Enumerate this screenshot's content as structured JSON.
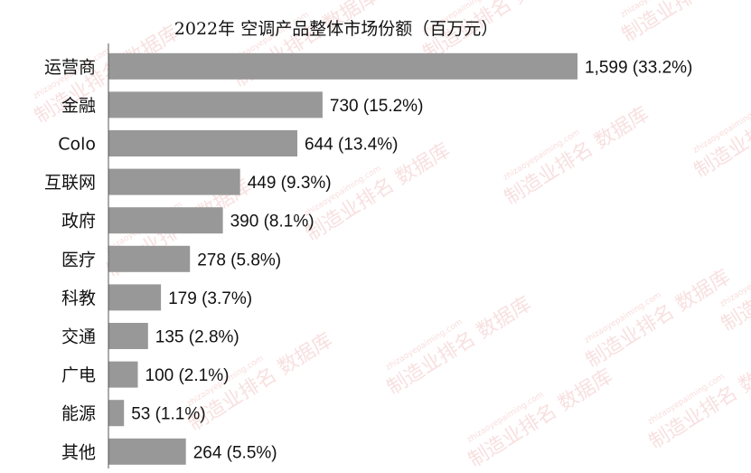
{
  "chart_data": {
    "type": "bar",
    "orientation": "horizontal",
    "title": "2022年 空调产品整体市场份额（百万元）",
    "categories": [
      "运营商",
      "金融",
      "Colo",
      "互联网",
      "政府",
      "医疗",
      "科教",
      "交通",
      "广电",
      "能源",
      "其他"
    ],
    "values": [
      1599,
      730,
      644,
      449,
      390,
      278,
      179,
      135,
      100,
      53,
      264
    ],
    "data_labels": [
      "1,599 (33.2%)",
      "730 (15.2%)",
      "644 (13.4%)",
      "449 (9.3%)",
      "390 (8.1%)",
      "278 (5.8%)",
      "179 (3.7%)",
      "135 (2.8%)",
      "100 (2.1%)",
      "53 (1.1%)",
      "264 (5.5%)"
    ],
    "xlim": [
      0,
      1599
    ],
    "grid": false,
    "legend": "none",
    "bar_color": "#989898"
  },
  "watermark": {
    "text": "制造业排名 数据库",
    "url_text": "zhizaoyepaiming.com",
    "color": "#f4c7c7"
  }
}
